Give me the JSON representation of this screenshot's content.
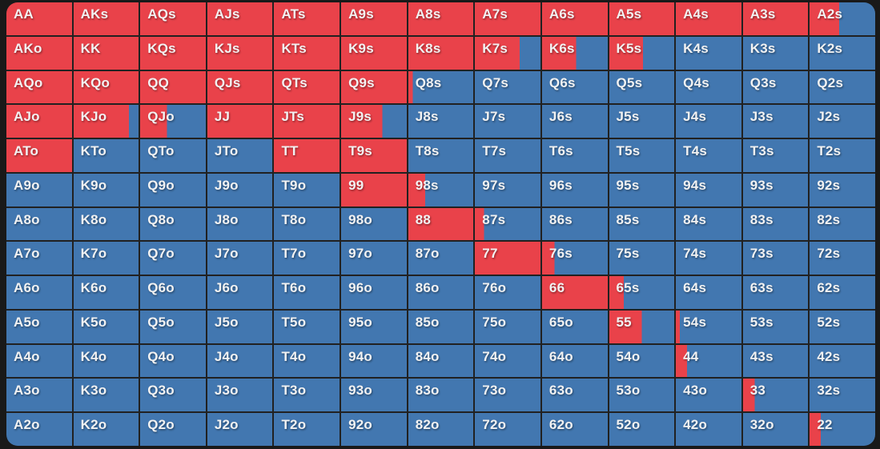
{
  "colors": {
    "raise": "#e9424a",
    "fold": "#4277b0",
    "grid_line": "#212121",
    "page_bg": "#191919",
    "label_text": "#f2f2f2"
  },
  "chart_data": {
    "type": "heatmap",
    "title": "Poker preflop hand range matrix (13x13)",
    "value_meaning": "red_fraction = horizontal fraction of the cell filled with the red (raise) color; remainder is blue (fold)",
    "rows": [
      {
        "cells": [
          {
            "hand": "AA",
            "red_fraction": 1
          },
          {
            "hand": "AKs",
            "red_fraction": 1
          },
          {
            "hand": "AQs",
            "red_fraction": 1
          },
          {
            "hand": "AJs",
            "red_fraction": 1
          },
          {
            "hand": "ATs",
            "red_fraction": 1
          },
          {
            "hand": "A9s",
            "red_fraction": 1
          },
          {
            "hand": "A8s",
            "red_fraction": 1
          },
          {
            "hand": "A7s",
            "red_fraction": 1
          },
          {
            "hand": "A6s",
            "red_fraction": 1
          },
          {
            "hand": "A5s",
            "red_fraction": 1
          },
          {
            "hand": "A4s",
            "red_fraction": 1
          },
          {
            "hand": "A3s",
            "red_fraction": 1
          },
          {
            "hand": "A2s",
            "red_fraction": 0.45
          }
        ]
      },
      {
        "cells": [
          {
            "hand": "AKo",
            "red_fraction": 1
          },
          {
            "hand": "KK",
            "red_fraction": 1
          },
          {
            "hand": "KQs",
            "red_fraction": 1
          },
          {
            "hand": "KJs",
            "red_fraction": 1
          },
          {
            "hand": "KTs",
            "red_fraction": 1
          },
          {
            "hand": "K9s",
            "red_fraction": 1
          },
          {
            "hand": "K8s",
            "red_fraction": 1
          },
          {
            "hand": "K7s",
            "red_fraction": 0.68
          },
          {
            "hand": "K6s",
            "red_fraction": 0.52
          },
          {
            "hand": "K5s",
            "red_fraction": 0.52
          },
          {
            "hand": "K4s",
            "red_fraction": 0
          },
          {
            "hand": "K3s",
            "red_fraction": 0
          },
          {
            "hand": "K2s",
            "red_fraction": 0
          }
        ]
      },
      {
        "cells": [
          {
            "hand": "AQo",
            "red_fraction": 1
          },
          {
            "hand": "KQo",
            "red_fraction": 1
          },
          {
            "hand": "QQ",
            "red_fraction": 1
          },
          {
            "hand": "QJs",
            "red_fraction": 1
          },
          {
            "hand": "QTs",
            "red_fraction": 1
          },
          {
            "hand": "Q9s",
            "red_fraction": 1
          },
          {
            "hand": "Q8s",
            "red_fraction": 0.07
          },
          {
            "hand": "Q7s",
            "red_fraction": 0
          },
          {
            "hand": "Q6s",
            "red_fraction": 0
          },
          {
            "hand": "Q5s",
            "red_fraction": 0
          },
          {
            "hand": "Q4s",
            "red_fraction": 0
          },
          {
            "hand": "Q3s",
            "red_fraction": 0
          },
          {
            "hand": "Q2s",
            "red_fraction": 0
          }
        ]
      },
      {
        "cells": [
          {
            "hand": "AJo",
            "red_fraction": 1
          },
          {
            "hand": "KJo",
            "red_fraction": 0.85
          },
          {
            "hand": "QJo",
            "red_fraction": 0.41
          },
          {
            "hand": "JJ",
            "red_fraction": 1
          },
          {
            "hand": "JTs",
            "red_fraction": 1
          },
          {
            "hand": "J9s",
            "red_fraction": 0.63
          },
          {
            "hand": "J8s",
            "red_fraction": 0
          },
          {
            "hand": "J7s",
            "red_fraction": 0
          },
          {
            "hand": "J6s",
            "red_fraction": 0
          },
          {
            "hand": "J5s",
            "red_fraction": 0
          },
          {
            "hand": "J4s",
            "red_fraction": 0
          },
          {
            "hand": "J3s",
            "red_fraction": 0
          },
          {
            "hand": "J2s",
            "red_fraction": 0
          }
        ]
      },
      {
        "cells": [
          {
            "hand": "ATo",
            "red_fraction": 1
          },
          {
            "hand": "KTo",
            "red_fraction": 0
          },
          {
            "hand": "QTo",
            "red_fraction": 0
          },
          {
            "hand": "JTo",
            "red_fraction": 0
          },
          {
            "hand": "TT",
            "red_fraction": 1
          },
          {
            "hand": "T9s",
            "red_fraction": 1
          },
          {
            "hand": "T8s",
            "red_fraction": 0
          },
          {
            "hand": "T7s",
            "red_fraction": 0
          },
          {
            "hand": "T6s",
            "red_fraction": 0
          },
          {
            "hand": "T5s",
            "red_fraction": 0
          },
          {
            "hand": "T4s",
            "red_fraction": 0
          },
          {
            "hand": "T3s",
            "red_fraction": 0
          },
          {
            "hand": "T2s",
            "red_fraction": 0
          }
        ]
      },
      {
        "cells": [
          {
            "hand": "A9o",
            "red_fraction": 0
          },
          {
            "hand": "K9o",
            "red_fraction": 0
          },
          {
            "hand": "Q9o",
            "red_fraction": 0
          },
          {
            "hand": "J9o",
            "red_fraction": 0
          },
          {
            "hand": "T9o",
            "red_fraction": 0
          },
          {
            "hand": "99",
            "red_fraction": 1
          },
          {
            "hand": "98s",
            "red_fraction": 0.26
          },
          {
            "hand": "97s",
            "red_fraction": 0
          },
          {
            "hand": "96s",
            "red_fraction": 0
          },
          {
            "hand": "95s",
            "red_fraction": 0
          },
          {
            "hand": "94s",
            "red_fraction": 0
          },
          {
            "hand": "93s",
            "red_fraction": 0
          },
          {
            "hand": "92s",
            "red_fraction": 0
          }
        ]
      },
      {
        "cells": [
          {
            "hand": "A8o",
            "red_fraction": 0
          },
          {
            "hand": "K8o",
            "red_fraction": 0
          },
          {
            "hand": "Q8o",
            "red_fraction": 0
          },
          {
            "hand": "J8o",
            "red_fraction": 0
          },
          {
            "hand": "T8o",
            "red_fraction": 0
          },
          {
            "hand": "98o",
            "red_fraction": 0
          },
          {
            "hand": "88",
            "red_fraction": 1
          },
          {
            "hand": "87s",
            "red_fraction": 0.14
          },
          {
            "hand": "86s",
            "red_fraction": 0
          },
          {
            "hand": "85s",
            "red_fraction": 0
          },
          {
            "hand": "84s",
            "red_fraction": 0
          },
          {
            "hand": "83s",
            "red_fraction": 0
          },
          {
            "hand": "82s",
            "red_fraction": 0
          }
        ]
      },
      {
        "cells": [
          {
            "hand": "A7o",
            "red_fraction": 0
          },
          {
            "hand": "K7o",
            "red_fraction": 0
          },
          {
            "hand": "Q7o",
            "red_fraction": 0
          },
          {
            "hand": "J7o",
            "red_fraction": 0
          },
          {
            "hand": "T7o",
            "red_fraction": 0
          },
          {
            "hand": "97o",
            "red_fraction": 0
          },
          {
            "hand": "87o",
            "red_fraction": 0
          },
          {
            "hand": "77",
            "red_fraction": 1
          },
          {
            "hand": "76s",
            "red_fraction": 0.19
          },
          {
            "hand": "75s",
            "red_fraction": 0
          },
          {
            "hand": "74s",
            "red_fraction": 0
          },
          {
            "hand": "73s",
            "red_fraction": 0
          },
          {
            "hand": "72s",
            "red_fraction": 0
          }
        ]
      },
      {
        "cells": [
          {
            "hand": "A6o",
            "red_fraction": 0
          },
          {
            "hand": "K6o",
            "red_fraction": 0
          },
          {
            "hand": "Q6o",
            "red_fraction": 0
          },
          {
            "hand": "J6o",
            "red_fraction": 0
          },
          {
            "hand": "T6o",
            "red_fraction": 0
          },
          {
            "hand": "96o",
            "red_fraction": 0
          },
          {
            "hand": "86o",
            "red_fraction": 0
          },
          {
            "hand": "76o",
            "red_fraction": 0
          },
          {
            "hand": "66",
            "red_fraction": 1
          },
          {
            "hand": "65s",
            "red_fraction": 0.22
          },
          {
            "hand": "64s",
            "red_fraction": 0
          },
          {
            "hand": "63s",
            "red_fraction": 0
          },
          {
            "hand": "62s",
            "red_fraction": 0
          }
        ]
      },
      {
        "cells": [
          {
            "hand": "A5o",
            "red_fraction": 0
          },
          {
            "hand": "K5o",
            "red_fraction": 0
          },
          {
            "hand": "Q5o",
            "red_fraction": 0
          },
          {
            "hand": "J5o",
            "red_fraction": 0
          },
          {
            "hand": "T5o",
            "red_fraction": 0
          },
          {
            "hand": "95o",
            "red_fraction": 0
          },
          {
            "hand": "85o",
            "red_fraction": 0
          },
          {
            "hand": "75o",
            "red_fraction": 0
          },
          {
            "hand": "65o",
            "red_fraction": 0
          },
          {
            "hand": "55",
            "red_fraction": 0.5
          },
          {
            "hand": "54s",
            "red_fraction": 0.06
          },
          {
            "hand": "53s",
            "red_fraction": 0
          },
          {
            "hand": "52s",
            "red_fraction": 0
          }
        ]
      },
      {
        "cells": [
          {
            "hand": "A4o",
            "red_fraction": 0
          },
          {
            "hand": "K4o",
            "red_fraction": 0
          },
          {
            "hand": "Q4o",
            "red_fraction": 0
          },
          {
            "hand": "J4o",
            "red_fraction": 0
          },
          {
            "hand": "T4o",
            "red_fraction": 0
          },
          {
            "hand": "94o",
            "red_fraction": 0
          },
          {
            "hand": "84o",
            "red_fraction": 0
          },
          {
            "hand": "74o",
            "red_fraction": 0
          },
          {
            "hand": "64o",
            "red_fraction": 0
          },
          {
            "hand": "54o",
            "red_fraction": 0
          },
          {
            "hand": "44",
            "red_fraction": 0.17
          },
          {
            "hand": "43s",
            "red_fraction": 0
          },
          {
            "hand": "42s",
            "red_fraction": 0
          }
        ]
      },
      {
        "cells": [
          {
            "hand": "A3o",
            "red_fraction": 0
          },
          {
            "hand": "K3o",
            "red_fraction": 0
          },
          {
            "hand": "Q3o",
            "red_fraction": 0
          },
          {
            "hand": "J3o",
            "red_fraction": 0
          },
          {
            "hand": "T3o",
            "red_fraction": 0
          },
          {
            "hand": "93o",
            "red_fraction": 0
          },
          {
            "hand": "83o",
            "red_fraction": 0
          },
          {
            "hand": "73o",
            "red_fraction": 0
          },
          {
            "hand": "63o",
            "red_fraction": 0
          },
          {
            "hand": "53o",
            "red_fraction": 0
          },
          {
            "hand": "43o",
            "red_fraction": 0
          },
          {
            "hand": "33",
            "red_fraction": 0.18
          },
          {
            "hand": "32s",
            "red_fraction": 0
          }
        ]
      },
      {
        "cells": [
          {
            "hand": "A2o",
            "red_fraction": 0
          },
          {
            "hand": "K2o",
            "red_fraction": 0
          },
          {
            "hand": "Q2o",
            "red_fraction": 0
          },
          {
            "hand": "J2o",
            "red_fraction": 0
          },
          {
            "hand": "T2o",
            "red_fraction": 0
          },
          {
            "hand": "92o",
            "red_fraction": 0
          },
          {
            "hand": "82o",
            "red_fraction": 0
          },
          {
            "hand": "72o",
            "red_fraction": 0
          },
          {
            "hand": "62o",
            "red_fraction": 0
          },
          {
            "hand": "52o",
            "red_fraction": 0
          },
          {
            "hand": "42o",
            "red_fraction": 0
          },
          {
            "hand": "32o",
            "red_fraction": 0
          },
          {
            "hand": "22",
            "red_fraction": 0.17
          }
        ]
      }
    ]
  }
}
